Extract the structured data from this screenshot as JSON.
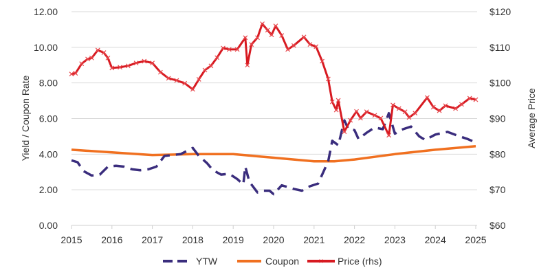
{
  "chart_data": {
    "type": "line",
    "title": "",
    "ylabel": "Yield / Coupon Rate",
    "y2label": "Average Price",
    "xlim": [
      2015,
      2025
    ],
    "ylim": [
      0,
      12
    ],
    "y2lim": [
      60,
      120
    ],
    "xticks": [
      "2015",
      "2016",
      "2017",
      "2018",
      "2019",
      "2020",
      "2021",
      "2022",
      "2023",
      "2024",
      "2025"
    ],
    "yticks": [
      "0.00",
      "2.00",
      "4.00",
      "6.00",
      "8.00",
      "10.00",
      "12.00"
    ],
    "y2ticks": [
      "$60",
      "$70",
      "$80",
      "$90",
      "$100",
      "$110",
      "$120"
    ],
    "grid": "horizontal",
    "legend": "bottom",
    "colors": {
      "ytw": "#3a2d7d",
      "coupon": "#f07020",
      "price": "#d71a21"
    },
    "series": [
      {
        "name": "YTW",
        "axis": "left",
        "style": "dashed",
        "x": [
          2015,
          2015.15,
          2015.3,
          2015.5,
          2015.7,
          2015.9,
          2016.1,
          2016.3,
          2016.5,
          2016.7,
          2016.9,
          2017.1,
          2017.3,
          2017.5,
          2017.7,
          2018.0,
          2018.15,
          2018.35,
          2018.5,
          2018.7,
          2018.9,
          2019.1,
          2019.25,
          2019.3,
          2019.4,
          2019.6,
          2019.75,
          2019.9,
          2020.0,
          2020.2,
          2020.5,
          2020.7,
          2020.9,
          2021.1,
          2021.35,
          2021.45,
          2021.6,
          2021.75,
          2021.85,
          2022.0,
          2022.1,
          2022.3,
          2022.5,
          2022.7,
          2022.85,
          2023.0,
          2023.2,
          2023.4,
          2023.6,
          2023.75,
          2024.0,
          2024.3,
          2024.6,
          2024.8,
          2024.95
        ],
        "y": [
          3.65,
          3.55,
          3.05,
          2.8,
          2.85,
          3.3,
          3.35,
          3.3,
          3.15,
          3.1,
          3.15,
          3.3,
          3.9,
          3.95,
          4.0,
          4.35,
          3.9,
          3.5,
          3.1,
          2.85,
          2.9,
          2.6,
          2.3,
          3.3,
          2.45,
          1.85,
          1.95,
          1.95,
          1.75,
          2.25,
          2.05,
          1.95,
          2.2,
          2.35,
          3.6,
          4.75,
          4.5,
          5.9,
          5.4,
          5.35,
          4.85,
          5.2,
          5.5,
          5.4,
          6.3,
          5.15,
          5.4,
          5.55,
          5.0,
          4.8,
          5.1,
          5.25,
          5.0,
          4.85,
          4.7
        ]
      },
      {
        "name": "Coupon",
        "axis": "left",
        "style": "solid",
        "x": [
          2015,
          2016,
          2017,
          2018,
          2019,
          2019.5,
          2020,
          2020.5,
          2021,
          2021.5,
          2022,
          2022.5,
          2023,
          2024,
          2025
        ],
        "y": [
          4.25,
          4.1,
          3.95,
          4.0,
          4.0,
          3.9,
          3.8,
          3.7,
          3.6,
          3.6,
          3.7,
          3.85,
          4.0,
          4.25,
          4.45
        ]
      },
      {
        "name": "Price (rhs)",
        "axis": "right",
        "style": "solid-x-markers",
        "x": [
          2015,
          2015.1,
          2015.25,
          2015.4,
          2015.5,
          2015.65,
          2015.8,
          2015.9,
          2016.0,
          2016.2,
          2016.4,
          2016.6,
          2016.8,
          2017.0,
          2017.2,
          2017.4,
          2017.6,
          2017.8,
          2018.0,
          2018.15,
          2018.3,
          2018.45,
          2018.6,
          2018.75,
          2018.9,
          2019.1,
          2019.3,
          2019.35,
          2019.45,
          2019.6,
          2019.72,
          2019.85,
          2019.95,
          2020.05,
          2020.2,
          2020.35,
          2020.5,
          2020.75,
          2020.9,
          2021.05,
          2021.2,
          2021.35,
          2021.45,
          2021.55,
          2021.6,
          2021.75,
          2021.9,
          2022.05,
          2022.15,
          2022.3,
          2022.5,
          2022.65,
          2022.85,
          2022.95,
          2023.1,
          2023.25,
          2023.35,
          2023.5,
          2023.8,
          2023.95,
          2024.1,
          2024.25,
          2024.5,
          2024.65,
          2024.85,
          2025.0
        ],
        "y": [
          102.5,
          102.7,
          105.4,
          106.7,
          107,
          109.2,
          108.5,
          107,
          104.2,
          104.4,
          104.8,
          105.6,
          106.1,
          105.6,
          103,
          101.3,
          100.7,
          99.9,
          98.2,
          101,
          103.6,
          104.8,
          107.1,
          109.8,
          109.4,
          109.4,
          112.7,
          105,
          110.8,
          112.7,
          116.6,
          114.8,
          113.5,
          116,
          113.3,
          109.4,
          110.5,
          112.9,
          110.8,
          110.2,
          106.1,
          101.1,
          94.7,
          92.4,
          95.1,
          86.3,
          89.5,
          92,
          90.1,
          91.9,
          90.9,
          90.1,
          85.3,
          93.8,
          92.8,
          91.9,
          90.3,
          91.5,
          95.9,
          93.2,
          92.2,
          93.6,
          92.8,
          94,
          95.7,
          95.3
        ]
      }
    ]
  }
}
